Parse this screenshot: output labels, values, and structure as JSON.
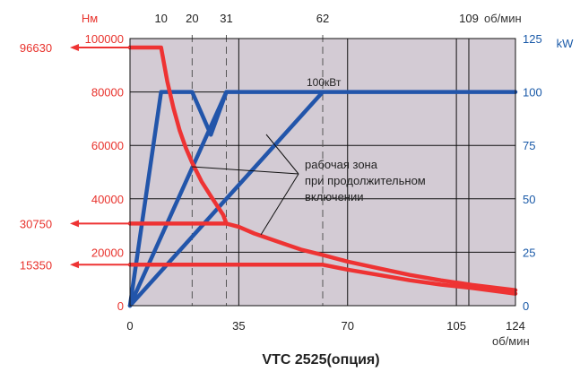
{
  "chart_data": {
    "type": "line",
    "title": "VTC 2525(опция)",
    "x_axis": {
      "unit": "об/мин",
      "range": [
        0,
        124
      ],
      "ticks": [
        "0",
        "35",
        "70",
        "105",
        "124"
      ],
      "tick_values": [
        0,
        35,
        70,
        105,
        124
      ]
    },
    "top_axis": {
      "unit": "об/мин",
      "ticks": [
        "10",
        "20",
        "31",
        "62",
        "109"
      ],
      "tick_values": [
        10,
        20,
        31,
        62,
        109
      ]
    },
    "y_left": {
      "unit": "Нм",
      "range": [
        0,
        100000
      ],
      "ticks": [
        "0",
        "20000",
        "40000",
        "60000",
        "80000",
        "100000"
      ],
      "tick_values": [
        0,
        20000,
        40000,
        60000,
        80000,
        100000
      ],
      "callouts": [
        "96630",
        "30750",
        "15350"
      ],
      "callout_values": [
        96630,
        30750,
        15350
      ]
    },
    "y_right": {
      "unit": "kW",
      "range": [
        0,
        125
      ],
      "ticks": [
        "0",
        "25",
        "50",
        "75",
        "100",
        "125"
      ],
      "tick_values": [
        0,
        25,
        50,
        75,
        100,
        125
      ]
    },
    "power_label": "100кВт",
    "annotation": [
      "рабочая зона",
      "при продолжительном",
      "включении"
    ],
    "torque_series": [
      {
        "x": [
          0,
          10,
          12,
          14,
          16,
          18,
          20,
          23,
          26,
          28,
          30,
          31
        ],
        "y": [
          96630,
          96630,
          84000,
          74000,
          65500,
          59000,
          53500,
          46500,
          41000,
          37500,
          34000,
          30750
        ]
      },
      {
        "x": [
          0,
          31
        ],
        "y": [
          30750,
          30750
        ]
      },
      {
        "x": [
          0,
          62
        ],
        "y": [
          15350,
          15350
        ]
      },
      {
        "x": [
          31,
          35,
          40,
          45,
          50,
          55,
          62,
          70,
          80,
          90,
          100,
          110,
          124
        ],
        "y": [
          30750,
          29500,
          27000,
          25000,
          23000,
          21000,
          19000,
          16500,
          14000,
          11500,
          9500,
          7800,
          5800
        ]
      },
      {
        "x": [
          62,
          70,
          80,
          90,
          100,
          110,
          124
        ],
        "y": [
          15350,
          13500,
          11500,
          9500,
          7900,
          6600,
          4500
        ]
      }
    ],
    "power_series": [
      {
        "x": [
          0,
          10,
          20,
          26,
          31,
          124
        ],
        "y": [
          0,
          100,
          100,
          80,
          100,
          100
        ]
      },
      {
        "x": [
          0,
          31
        ],
        "y": [
          0,
          100
        ]
      },
      {
        "x": [
          0,
          62
        ],
        "y": [
          0,
          100
        ]
      }
    ],
    "dashed_x": [
      20,
      31,
      62
    ],
    "grid": true,
    "colors": {
      "torque": "#ee3333",
      "power": "#2255aa",
      "background": "#d3cbd4",
      "left_axis_text": "#e8322c",
      "right_axis_text": "#1a5aa8"
    }
  }
}
